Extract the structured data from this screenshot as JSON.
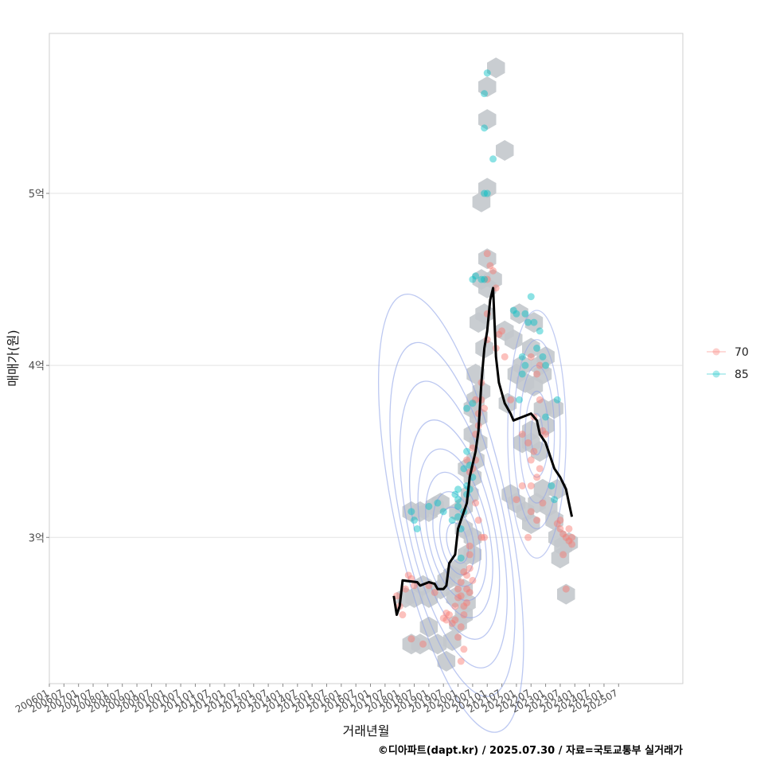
{
  "chart_data": {
    "type": "scatter",
    "title": "",
    "xlabel": "거래년월",
    "ylabel": "매매가(원)",
    "caption": "©디아파트(dapt.kr) / 2025.07.30 / 자료=국토교통부 실거래가",
    "x_tick_labels": [
      "200601",
      "200607",
      "200701",
      "200707",
      "200801",
      "200807",
      "200901",
      "200907",
      "201001",
      "201007",
      "201101",
      "201107",
      "201201",
      "201207",
      "201301",
      "201307",
      "201401",
      "201407",
      "201501",
      "201507",
      "201601",
      "201607",
      "201701",
      "201707",
      "201801",
      "201807",
      "201901",
      "201907",
      "202001",
      "202007",
      "202101",
      "202107",
      "202201",
      "202207",
      "202301",
      "202307",
      "202401",
      "202407",
      "202501",
      "202507"
    ],
    "y_ticks": [
      {
        "value": 3.0,
        "label": "3억"
      },
      {
        "value": 4.0,
        "label": "4억"
      },
      {
        "value": 5.0,
        "label": "5억"
      }
    ],
    "ylim": [
      2.15,
      5.93
    ],
    "x_unit": "years since 2006-01",
    "xlim": [
      0,
      21.7
    ],
    "legend": {
      "position": "right",
      "entries": [
        {
          "label": "70",
          "color": "#F8766D"
        },
        {
          "label": "85",
          "color": "#00BFC4"
        }
      ]
    },
    "colors": {
      "series_70": "#F8766D",
      "series_85": "#00BFC4",
      "trend": "#000000",
      "hex": "#c3c8cc",
      "contour": "#8fa3e8"
    },
    "series": [
      {
        "name": "70",
        "points": [
          [
            11.9,
            2.66
          ],
          [
            12.0,
            2.6
          ],
          [
            12.2,
            2.7
          ],
          [
            12.3,
            2.78
          ],
          [
            12.4,
            2.76
          ],
          [
            12.5,
            2.72
          ],
          [
            12.1,
            2.55
          ],
          [
            12.4,
            2.41
          ],
          [
            12.8,
            2.38
          ],
          [
            13.0,
            2.72
          ],
          [
            13.2,
            2.68
          ],
          [
            13.5,
            2.53
          ],
          [
            13.6,
            2.52
          ],
          [
            13.7,
            2.55
          ],
          [
            13.6,
            2.56
          ],
          [
            13.8,
            2.5
          ],
          [
            13.9,
            2.52
          ],
          [
            13.9,
            2.6
          ],
          [
            14.0,
            2.65
          ],
          [
            14.0,
            2.7
          ],
          [
            14.1,
            2.74
          ],
          [
            14.1,
            2.66
          ],
          [
            14.2,
            2.6
          ],
          [
            14.2,
            2.55
          ],
          [
            14.1,
            2.48
          ],
          [
            14.0,
            2.42
          ],
          [
            14.1,
            2.28
          ],
          [
            14.2,
            2.35
          ],
          [
            14.3,
            2.7
          ],
          [
            14.3,
            2.78
          ],
          [
            14.4,
            2.82
          ],
          [
            14.4,
            2.9
          ],
          [
            14.4,
            2.95
          ],
          [
            14.2,
            2.8
          ],
          [
            14.3,
            2.62
          ],
          [
            14.5,
            2.75
          ],
          [
            14.4,
            2.68
          ],
          [
            14.3,
            3.45
          ],
          [
            14.5,
            3.4
          ],
          [
            14.5,
            3.52
          ],
          [
            14.6,
            3.6
          ],
          [
            14.6,
            3.45
          ],
          [
            14.4,
            3.38
          ],
          [
            14.6,
            3.2
          ],
          [
            14.7,
            3.1
          ],
          [
            14.8,
            3.0
          ],
          [
            14.9,
            3.0
          ],
          [
            14.7,
            3.72
          ],
          [
            14.8,
            3.8
          ],
          [
            14.8,
            3.9
          ],
          [
            14.6,
            3.8
          ],
          [
            14.7,
            3.65
          ],
          [
            14.9,
            3.75
          ],
          [
            15.0,
            4.15
          ],
          [
            15.0,
            4.3
          ],
          [
            15.0,
            4.5
          ],
          [
            15.1,
            4.58
          ],
          [
            15.2,
            4.55
          ],
          [
            15.0,
            4.65
          ],
          [
            15.3,
            4.45
          ],
          [
            15.4,
            4.18
          ],
          [
            15.3,
            4.1
          ],
          [
            15.5,
            4.2
          ],
          [
            15.6,
            4.05
          ],
          [
            15.8,
            3.8
          ],
          [
            16.2,
            3.6
          ],
          [
            16.4,
            3.55
          ],
          [
            16.2,
            3.3
          ],
          [
            16.0,
            3.22
          ],
          [
            16.5,
            3.45
          ],
          [
            16.6,
            3.5
          ],
          [
            16.7,
            3.35
          ],
          [
            16.5,
            3.3
          ],
          [
            16.6,
            3.7
          ],
          [
            16.8,
            3.8
          ],
          [
            16.9,
            3.62
          ],
          [
            17.0,
            3.6
          ],
          [
            16.8,
            3.4
          ],
          [
            16.9,
            3.2
          ],
          [
            16.7,
            3.1
          ],
          [
            16.5,
            3.15
          ],
          [
            16.4,
            3.0
          ],
          [
            16.8,
            4.0
          ],
          [
            16.7,
            3.95
          ],
          [
            16.5,
            4.05
          ],
          [
            17.5,
            3.05
          ],
          [
            17.7,
            3.0
          ],
          [
            17.8,
            2.98
          ],
          [
            17.9,
            3.0
          ],
          [
            17.6,
            3.02
          ],
          [
            17.8,
            3.05
          ],
          [
            17.6,
            2.9
          ],
          [
            17.7,
            2.7
          ],
          [
            17.5,
            3.1
          ],
          [
            17.4,
            3.08
          ],
          [
            17.9,
            2.96
          ]
        ]
      },
      {
        "name": "85",
        "points": [
          [
            12.4,
            3.15
          ],
          [
            12.5,
            3.1
          ],
          [
            12.6,
            3.05
          ],
          [
            13.0,
            3.18
          ],
          [
            13.3,
            3.2
          ],
          [
            13.5,
            3.15
          ],
          [
            13.8,
            3.1
          ],
          [
            14.0,
            3.18
          ],
          [
            14.0,
            3.22
          ],
          [
            14.0,
            3.28
          ],
          [
            14.0,
            3.12
          ],
          [
            14.1,
            3.05
          ],
          [
            14.2,
            3.15
          ],
          [
            14.3,
            3.25
          ],
          [
            14.3,
            3.3
          ],
          [
            14.4,
            3.28
          ],
          [
            14.5,
            3.35
          ],
          [
            14.4,
            3.42
          ],
          [
            14.3,
            3.5
          ],
          [
            14.2,
            3.4
          ],
          [
            13.9,
            3.25
          ],
          [
            14.1,
            2.88
          ],
          [
            14.3,
            3.75
          ],
          [
            14.5,
            3.78
          ],
          [
            14.5,
            4.5
          ],
          [
            14.6,
            4.52
          ],
          [
            14.8,
            4.5
          ],
          [
            14.9,
            4.5
          ],
          [
            14.9,
            5.0
          ],
          [
            15.0,
            5.0
          ],
          [
            14.9,
            5.38
          ],
          [
            14.9,
            5.58
          ],
          [
            15.0,
            5.7
          ],
          [
            15.2,
            5.2
          ],
          [
            15.9,
            4.32
          ],
          [
            16.0,
            4.3
          ],
          [
            16.3,
            4.3
          ],
          [
            16.4,
            4.25
          ],
          [
            16.5,
            4.4
          ],
          [
            16.6,
            4.25
          ],
          [
            16.8,
            4.2
          ],
          [
            16.7,
            4.1
          ],
          [
            16.9,
            4.05
          ],
          [
            17.0,
            4.0
          ],
          [
            16.2,
            4.05
          ],
          [
            16.3,
            4.0
          ],
          [
            16.2,
            3.95
          ],
          [
            16.1,
            3.8
          ],
          [
            17.0,
            3.7
          ],
          [
            17.4,
            3.8
          ],
          [
            17.2,
            3.3
          ],
          [
            17.3,
            3.22
          ]
        ]
      },
      {
        "name": "trend",
        "points": [
          [
            11.8,
            2.66
          ],
          [
            11.9,
            2.55
          ],
          [
            12.0,
            2.6
          ],
          [
            12.1,
            2.75
          ],
          [
            12.6,
            2.74
          ],
          [
            12.7,
            2.72
          ],
          [
            13.0,
            2.74
          ],
          [
            13.2,
            2.73
          ],
          [
            13.3,
            2.7
          ],
          [
            13.5,
            2.7
          ],
          [
            13.6,
            2.72
          ],
          [
            13.7,
            2.85
          ],
          [
            13.9,
            2.9
          ],
          [
            14.0,
            3.05
          ],
          [
            14.1,
            3.1
          ],
          [
            14.3,
            3.2
          ],
          [
            14.4,
            3.35
          ],
          [
            14.6,
            3.5
          ],
          [
            14.7,
            3.62
          ],
          [
            14.8,
            3.9
          ],
          [
            14.9,
            4.1
          ],
          [
            15.0,
            4.2
          ],
          [
            15.1,
            4.38
          ],
          [
            15.2,
            4.45
          ],
          [
            15.3,
            4.05
          ],
          [
            15.4,
            3.9
          ],
          [
            15.6,
            3.78
          ],
          [
            15.8,
            3.72
          ],
          [
            15.9,
            3.68
          ],
          [
            16.2,
            3.7
          ],
          [
            16.5,
            3.72
          ],
          [
            16.7,
            3.68
          ],
          [
            16.8,
            3.6
          ],
          [
            17.0,
            3.55
          ],
          [
            17.2,
            3.45
          ],
          [
            17.3,
            3.4
          ],
          [
            17.5,
            3.35
          ],
          [
            17.7,
            3.28
          ],
          [
            17.8,
            3.2
          ],
          [
            17.9,
            3.12
          ]
        ]
      }
    ],
    "hex_bins": [
      [
        12.2,
        2.65
      ],
      [
        12.5,
        2.65
      ],
      [
        12.8,
        2.72
      ],
      [
        13.0,
        2.65
      ],
      [
        13.4,
        2.7
      ],
      [
        13.6,
        2.75
      ],
      [
        12.4,
        2.38
      ],
      [
        12.7,
        2.38
      ],
      [
        13.3,
        2.38
      ],
      [
        13.6,
        2.28
      ],
      [
        13.8,
        2.4
      ],
      [
        13.0,
        2.48
      ],
      [
        12.4,
        3.15
      ],
      [
        12.7,
        3.15
      ],
      [
        13.0,
        3.15
      ],
      [
        13.2,
        3.18
      ],
      [
        13.4,
        3.2
      ],
      [
        14.0,
        2.5
      ],
      [
        14.2,
        2.55
      ],
      [
        13.9,
        2.65
      ],
      [
        14.2,
        2.7
      ],
      [
        13.8,
        2.78
      ],
      [
        14.0,
        2.82
      ],
      [
        14.3,
        2.9
      ],
      [
        14.5,
        2.9
      ],
      [
        14.3,
        2.62
      ],
      [
        14.5,
        3.0
      ],
      [
        14.2,
        3.05
      ],
      [
        14.0,
        3.15
      ],
      [
        14.2,
        3.18
      ],
      [
        14.4,
        3.25
      ],
      [
        14.5,
        3.35
      ],
      [
        14.3,
        3.4
      ],
      [
        14.6,
        3.45
      ],
      [
        14.7,
        3.55
      ],
      [
        14.5,
        3.6
      ],
      [
        14.7,
        3.7
      ],
      [
        14.6,
        3.8
      ],
      [
        14.8,
        3.85
      ],
      [
        14.5,
        3.75
      ],
      [
        14.6,
        3.95
      ],
      [
        14.9,
        4.1
      ],
      [
        14.7,
        4.25
      ],
      [
        14.9,
        4.3
      ],
      [
        15.0,
        4.45
      ],
      [
        14.8,
        4.5
      ],
      [
        15.2,
        4.5
      ],
      [
        15.0,
        4.62
      ],
      [
        15.0,
        5.03
      ],
      [
        14.8,
        4.95
      ],
      [
        15.0,
        5.43
      ],
      [
        15.0,
        5.62
      ],
      [
        15.3,
        5.73
      ],
      [
        15.6,
        5.25
      ],
      [
        15.6,
        4.2
      ],
      [
        15.9,
        4.15
      ],
      [
        16.1,
        4.3
      ],
      [
        16.2,
        4.0
      ],
      [
        16.5,
        4.1
      ],
      [
        16.6,
        4.25
      ],
      [
        16.8,
        4.0
      ],
      [
        17.0,
        4.05
      ],
      [
        16.9,
        3.95
      ],
      [
        16.6,
        3.88
      ],
      [
        16.3,
        3.9
      ],
      [
        16.0,
        3.95
      ],
      [
        15.7,
        3.78
      ],
      [
        16.2,
        3.55
      ],
      [
        16.5,
        3.55
      ],
      [
        16.8,
        3.5
      ],
      [
        17.0,
        3.65
      ],
      [
        17.3,
        3.75
      ],
      [
        16.9,
        3.75
      ],
      [
        16.5,
        3.62
      ],
      [
        15.8,
        3.25
      ],
      [
        16.0,
        3.2
      ],
      [
        16.3,
        3.15
      ],
      [
        16.5,
        3.08
      ],
      [
        16.7,
        3.2
      ],
      [
        16.9,
        3.28
      ],
      [
        17.1,
        3.18
      ],
      [
        17.4,
        3.28
      ],
      [
        17.3,
        3.1
      ],
      [
        17.4,
        3.0
      ],
      [
        17.6,
        2.95
      ],
      [
        17.8,
        2.97
      ],
      [
        17.5,
        2.88
      ],
      [
        17.7,
        2.67
      ]
    ],
    "density_center": {
      "x": 14.0,
      "y": 2.95
    },
    "density_center_2": {
      "x": 16.7,
      "y": 3.6
    }
  }
}
